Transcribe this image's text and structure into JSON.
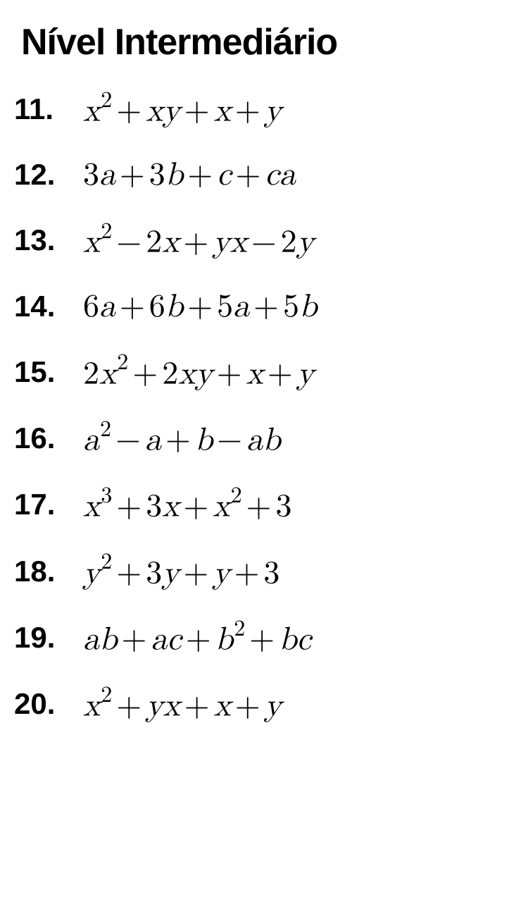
{
  "title": "Nível Intermediário",
  "title_fontsize": 52,
  "title_fontweight": 800,
  "number_fontsize": 42,
  "number_fontweight": 700,
  "expr_fontsize": 46,
  "text_color": "#000000",
  "background_color": "#ffffff",
  "row_gap": 44,
  "problems": [
    {
      "number": "11.",
      "tokens": [
        "x",
        "^2",
        "+",
        "x",
        "y",
        "+",
        "x",
        "+",
        "y"
      ]
    },
    {
      "number": "12.",
      "tokens": [
        "3",
        "a",
        "+",
        "3",
        "b",
        "+",
        "c",
        "+",
        "c",
        "a"
      ]
    },
    {
      "number": "13.",
      "tokens": [
        "x",
        "^2",
        "−",
        "2",
        "x",
        "+",
        "y",
        "x",
        "−",
        "2",
        "y"
      ]
    },
    {
      "number": "14.",
      "tokens": [
        "6",
        "a",
        "+",
        "6",
        "b",
        "+",
        "5",
        "a",
        "+",
        "5",
        "b"
      ]
    },
    {
      "number": "15.",
      "tokens": [
        "2",
        "x",
        "^2",
        "+",
        "2",
        "x",
        "y",
        "+",
        "x",
        "+",
        "y"
      ]
    },
    {
      "number": "16.",
      "tokens": [
        "a",
        "^2",
        "−",
        "a",
        "+",
        "b",
        "−",
        "a",
        "b"
      ]
    },
    {
      "number": "17.",
      "tokens": [
        "x",
        "^3",
        "+",
        "3",
        "x",
        "+",
        "x",
        "^2",
        "+",
        "3"
      ]
    },
    {
      "number": "18.",
      "tokens": [
        "y",
        "^2",
        "+",
        "3",
        "y",
        "+",
        "y",
        "+",
        "3"
      ]
    },
    {
      "number": "19.",
      "tokens": [
        "a",
        "b",
        "+",
        "a",
        "c",
        "+",
        "b",
        "^2",
        "+",
        "b",
        "c"
      ]
    },
    {
      "number": "20.",
      "tokens": [
        "x",
        "^2",
        "+",
        "y",
        "x",
        "+",
        "x",
        "+",
        "y"
      ]
    }
  ]
}
